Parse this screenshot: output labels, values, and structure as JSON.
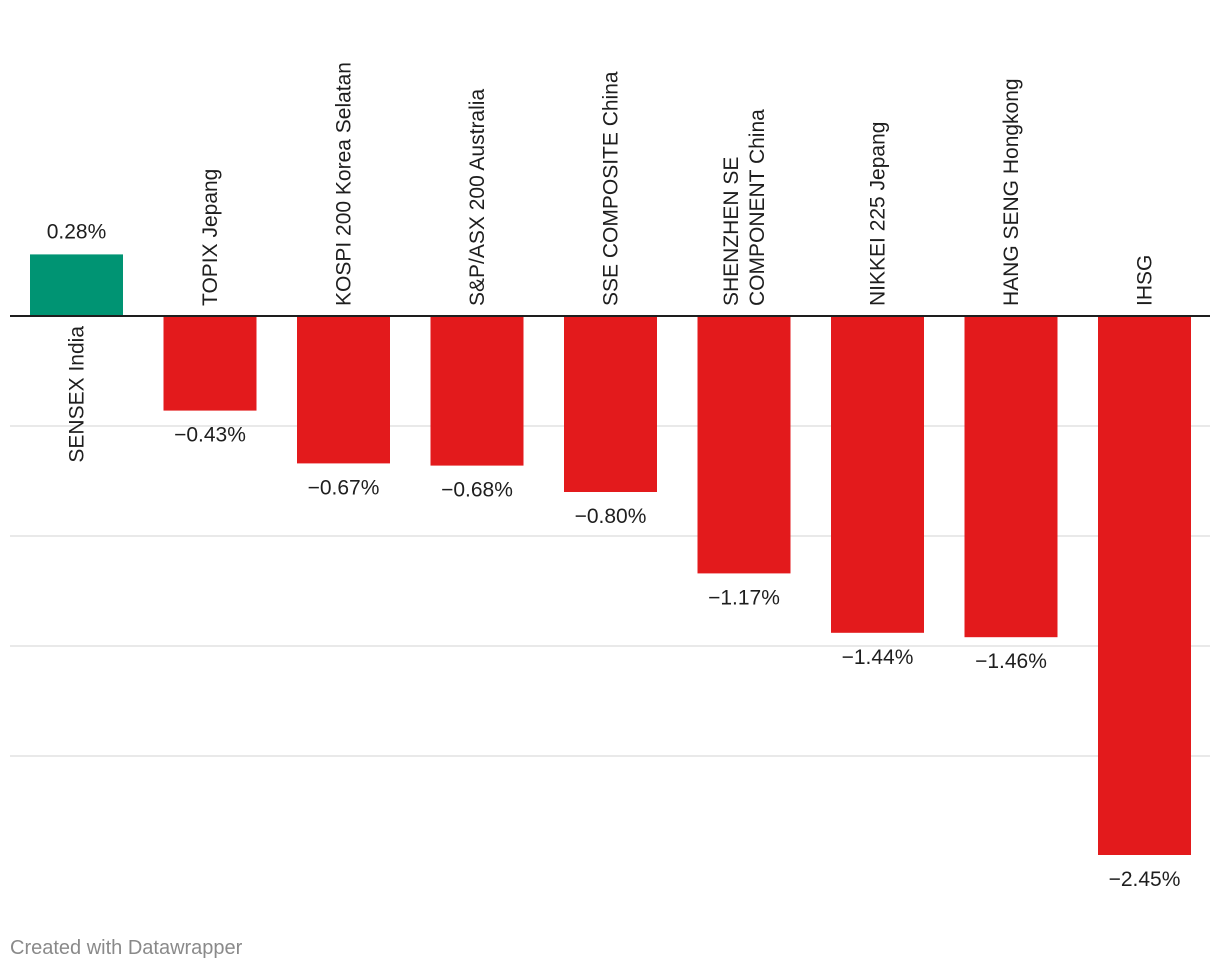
{
  "chart_data": {
    "type": "bar",
    "orientation": "vertical",
    "categories": [
      [
        "SENSEX India"
      ],
      [
        "TOPIX Jepang"
      ],
      [
        "KOSPI 200 Korea Selatan"
      ],
      [
        "S&P/ASX 200 Australia"
      ],
      [
        "SSE COMPOSITE China"
      ],
      [
        "SHENZHEN SE",
        "COMPONENT China"
      ],
      [
        "NIKKEI 225 Jepang"
      ],
      [
        "HANG SENG Hongkong"
      ],
      [
        "IHSG"
      ]
    ],
    "values": [
      0.28,
      -0.43,
      -0.67,
      -0.68,
      -0.8,
      -1.17,
      -1.44,
      -1.46,
      -2.45
    ],
    "value_labels": [
      "0.28%",
      "−0.43%",
      "−0.67%",
      "−0.68%",
      "−0.80%",
      "−1.17%",
      "−1.44%",
      "−1.46%",
      "−2.45%"
    ],
    "ylim": [
      -2.45,
      0.28
    ],
    "gridlines": [
      -0.5,
      -1.0,
      -1.5,
      -2.0
    ],
    "colors": {
      "positive": "#009473",
      "negative": "#e31a1c",
      "grid": "#e2e2e2",
      "axis": "#1e1e1e"
    },
    "title": "",
    "xlabel": "",
    "ylabel": ""
  },
  "footer": {
    "credit": "Created with Datawrapper"
  }
}
